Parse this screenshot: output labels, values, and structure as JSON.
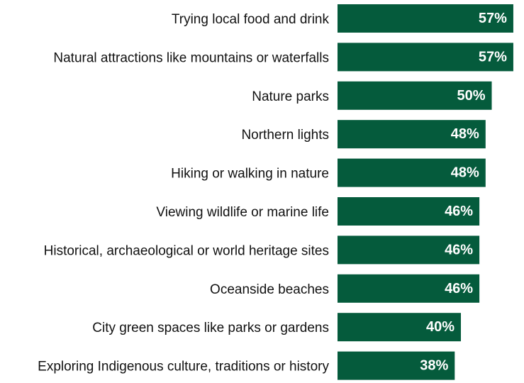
{
  "chart_data": {
    "type": "bar",
    "orientation": "horizontal",
    "categories": [
      "Trying local food and drink",
      "Natural attractions like mountains or waterfalls",
      "Nature parks",
      "Northern lights",
      "Hiking or walking in nature",
      "Viewing wildlife or marine life",
      "Historical, archaeological or world heritage sites",
      "Oceanside beaches",
      "City green spaces like parks or gardens",
      "Exploring Indigenous culture, traditions or history"
    ],
    "values": [
      57,
      57,
      50,
      48,
      48,
      46,
      46,
      46,
      40,
      38
    ],
    "value_labels": [
      "57%",
      "57%",
      "50%",
      "48%",
      "48%",
      "46%",
      "46%",
      "46%",
      "40%",
      "38%"
    ],
    "bar_color": "#055b3c",
    "value_label_color": "#ffffff",
    "title": "",
    "xlabel": "",
    "ylabel": "",
    "grid": false,
    "legend": "none"
  }
}
